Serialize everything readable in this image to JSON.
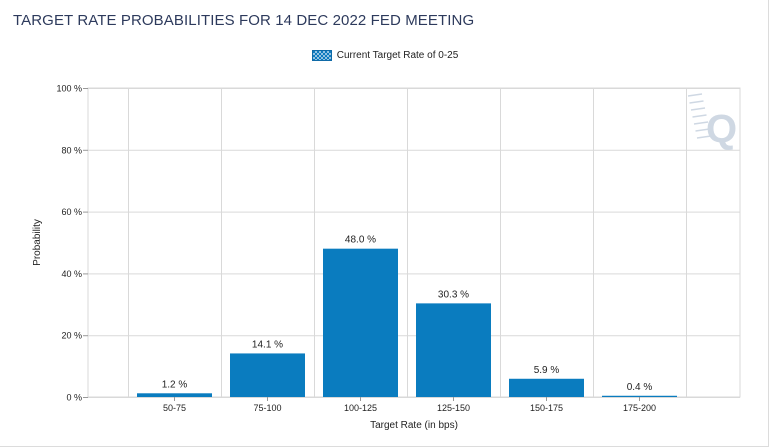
{
  "header": {
    "title": "TARGET RATE PROBABILITIES FOR 14 DEC 2022 FED MEETING"
  },
  "colors": {
    "bar": "#0a7cbf",
    "grid": "#d9d9d9",
    "title": "#2d3a5c",
    "watermark": "#cfd8e3"
  },
  "watermark": {
    "icon": "q-logo-icon",
    "letter": "Q"
  },
  "chart_data": {
    "type": "bar",
    "title": "TARGET RATE PROBABILITIES FOR 14 DEC 2022 FED MEETING",
    "xlabel": "Target Rate (in bps)",
    "ylabel": "Probability",
    "ylim": [
      0,
      100
    ],
    "yticks": [
      0,
      20,
      40,
      60,
      80,
      100
    ],
    "ytick_labels": [
      "0 %",
      "20 %",
      "40 %",
      "60 %",
      "80 %",
      "100 %"
    ],
    "grid": true,
    "legend_position": "top-center",
    "categories": [
      "50-75",
      "75-100",
      "100-125",
      "125-150",
      "150-175",
      "175-200"
    ],
    "series": [
      {
        "name": "Current Target Rate of 0-25",
        "values": [
          1.2,
          14.1,
          48.0,
          30.3,
          5.9,
          0.4
        ],
        "labels": [
          "1.2 %",
          "14.1 %",
          "48.0 %",
          "30.3 %",
          "5.9 %",
          "0.4 %"
        ]
      }
    ]
  }
}
